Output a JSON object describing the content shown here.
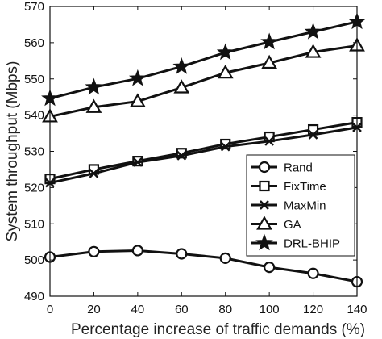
{
  "chart_data": {
    "type": "line",
    "title": "",
    "xlabel": "Percentage increase of traffic demands (%)",
    "ylabel": "System throughput (Mbps)",
    "xlim": [
      0,
      140
    ],
    "ylim": [
      490,
      570
    ],
    "xticks": [
      0,
      20,
      40,
      60,
      80,
      100,
      120,
      140
    ],
    "yticks": [
      490,
      500,
      510,
      520,
      530,
      540,
      550,
      560,
      570
    ],
    "grid": false,
    "legend_position": "bottom-right",
    "x": [
      0,
      20,
      40,
      60,
      80,
      100,
      120,
      140
    ],
    "series": [
      {
        "name": "Rand",
        "marker": "circle",
        "values": [
          500.8,
          502.3,
          502.6,
          501.7,
          500.5,
          498.0,
          496.3,
          494.0
        ]
      },
      {
        "name": "FixTime",
        "marker": "square",
        "values": [
          522.4,
          525.0,
          527.3,
          529.5,
          532.0,
          534.0,
          536.0,
          538.0
        ]
      },
      {
        "name": "MaxMin",
        "marker": "x",
        "values": [
          521.3,
          523.9,
          527.0,
          528.8,
          531.3,
          532.8,
          534.6,
          536.6
        ]
      },
      {
        "name": "GA",
        "marker": "triangle",
        "values": [
          539.6,
          542.2,
          543.8,
          547.6,
          551.7,
          554.4,
          557.4,
          559.2
        ]
      },
      {
        "name": "DRL-BHIP",
        "marker": "star",
        "values": [
          544.6,
          547.7,
          550.1,
          553.4,
          557.3,
          560.2,
          563.0,
          565.8
        ]
      }
    ],
    "line_color": "#111111"
  }
}
